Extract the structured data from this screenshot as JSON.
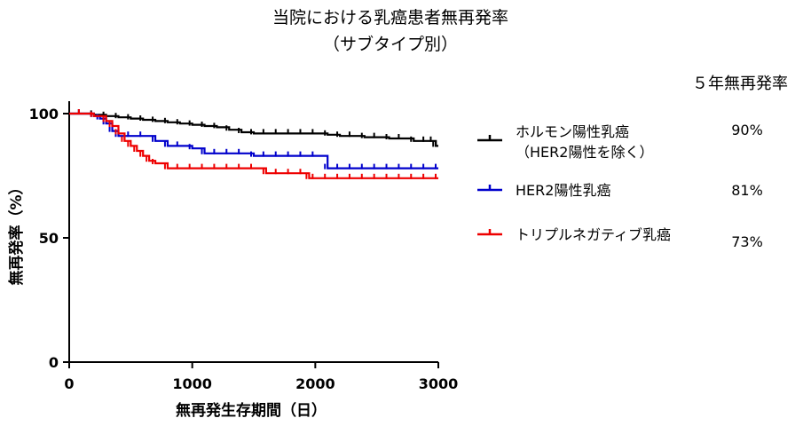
{
  "chart_data": {
    "type": "line",
    "title": "当院における乳癌患者無再発率",
    "subtitle": "（サブタイプ別）",
    "xlabel": "無再発生存期間（日）",
    "ylabel": "無再発率（%）",
    "xlim": [
      0,
      3000
    ],
    "ylim": [
      0,
      105
    ],
    "xticks": [
      "0",
      "1000",
      "2000",
      "3000"
    ],
    "yticks": [
      "0",
      "50",
      "100"
    ],
    "xtick_values": [
      0,
      1000,
      2000,
      3000
    ],
    "ytick_values": [
      0,
      50,
      100
    ],
    "grid": false,
    "legend_position": "right",
    "legend_header": "５年無再発率",
    "series": [
      {
        "name": "ホルモン陽性乳癌",
        "name_line2": "（HER2陽性を除く）",
        "five_year_rate": "90%",
        "color": "#000000",
        "x": [
          0,
          100,
          200,
          300,
          400,
          500,
          600,
          700,
          800,
          900,
          1000,
          1100,
          1200,
          1300,
          1400,
          1500,
          1600,
          1700,
          1800,
          1900,
          2000,
          2100,
          2200,
          2300,
          2400,
          2500,
          2600,
          2700,
          2800,
          2900,
          2960,
          2980,
          3000
        ],
        "y": [
          100,
          100,
          99.5,
          99,
          98.5,
          98,
          97.5,
          97,
          96.5,
          96,
          95.5,
          95,
          94.5,
          93.5,
          92.5,
          92,
          92,
          92,
          92,
          92,
          92,
          91.5,
          91,
          91,
          90.5,
          90.5,
          90,
          90,
          89,
          89,
          89,
          87,
          87
        ]
      },
      {
        "name": "HER2陽性乳癌",
        "five_year_rate": "81%",
        "color": "#0000cc",
        "x": [
          0,
          100,
          200,
          250,
          300,
          350,
          400,
          500,
          600,
          700,
          800,
          900,
          1000,
          1100,
          1200,
          1300,
          1400,
          1500,
          1600,
          1700,
          1800,
          1900,
          2000,
          2100,
          2200,
          2300,
          2400,
          2500,
          2600,
          2700,
          2800,
          2900,
          3000
        ],
        "y": [
          100,
          100,
          99,
          98,
          96,
          93,
          91,
          91,
          91,
          89,
          87,
          87,
          86,
          84,
          84,
          84,
          84,
          83,
          83,
          83,
          83,
          83,
          83,
          78,
          78,
          78,
          78,
          78,
          78,
          78,
          78,
          78,
          78
        ]
      },
      {
        "name": "トリプルネガティブ乳癌",
        "five_year_rate": "73%",
        "color": "#ee0000",
        "x": [
          0,
          100,
          200,
          300,
          350,
          400,
          450,
          500,
          550,
          600,
          650,
          700,
          800,
          900,
          1000,
          1100,
          1200,
          1300,
          1400,
          1500,
          1600,
          1700,
          1800,
          1900,
          1950,
          2000,
          2100,
          2200,
          2300,
          2400,
          2500,
          2600,
          2700,
          2800,
          2900,
          3000
        ],
        "y": [
          100,
          100,
          99,
          97,
          95,
          92,
          89,
          87,
          85,
          83,
          81,
          80,
          78,
          78,
          78,
          78,
          78,
          78,
          78,
          78,
          76,
          76,
          76,
          76,
          74,
          74,
          74,
          74,
          74,
          74,
          74,
          74,
          74,
          74,
          74,
          74
        ]
      }
    ]
  }
}
